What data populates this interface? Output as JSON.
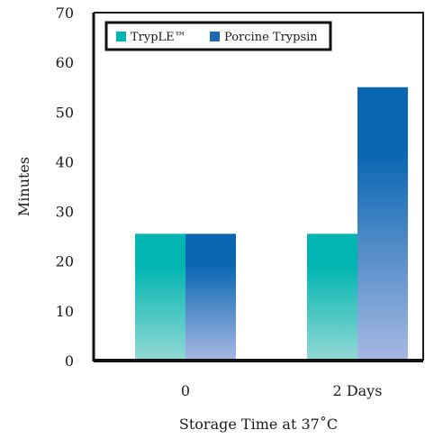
{
  "chart_data": {
    "type": "bar",
    "categories": [
      "0",
      "2 Days"
    ],
    "series": [
      {
        "name": "TrypLE™",
        "values": [
          25.5,
          25.5
        ],
        "color_top": "#00b5b2",
        "color_bottom": "#94d9d4"
      },
      {
        "name": "Porcine Trypsin",
        "values": [
          25.5,
          55
        ],
        "color_top": "#0b67b2",
        "color_bottom": "#a7b9e2"
      }
    ],
    "title": "",
    "xlabel": "Storage Time at 37˚C",
    "ylabel": "Minutes",
    "ylim": [
      0,
      70
    ],
    "yticks": [
      "0",
      "10",
      "20",
      "30",
      "40",
      "50",
      "60",
      "70"
    ],
    "grid": false,
    "legend": "top-left"
  }
}
